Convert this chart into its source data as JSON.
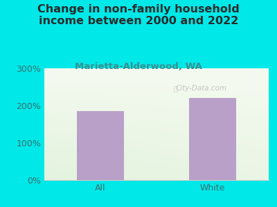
{
  "title": "Change in non-family household\nincome between 2000 and 2022",
  "subtitle": "Marietta-Alderwood, WA",
  "categories": [
    "All",
    "White"
  ],
  "values": [
    185,
    220
  ],
  "bar_color": "#b8a0c8",
  "background_color": "#00e8e8",
  "title_color": "#2a2a2a",
  "subtitle_color": "#3a9090",
  "axis_label_color": "#3a7070",
  "ylim": [
    0,
    300
  ],
  "yticks": [
    0,
    100,
    200,
    300
  ],
  "ytick_labels": [
    "0%",
    "100%",
    "200%",
    "300%"
  ],
  "watermark": "City-Data.com",
  "title_fontsize": 11.5,
  "subtitle_fontsize": 9.5,
  "tick_fontsize": 9
}
